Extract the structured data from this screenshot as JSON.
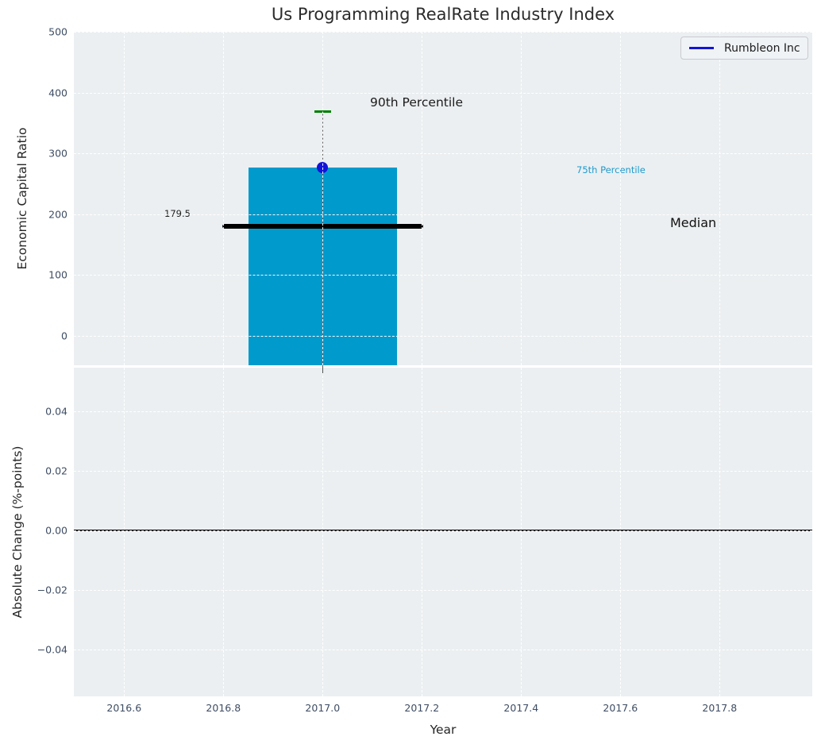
{
  "title": "Us Programming RealRate Industry Index",
  "legend": {
    "label": "Rumbleon Inc"
  },
  "colors": {
    "plot_background": "#eceff1",
    "gridline": "#ffffff",
    "bar": "#009acd",
    "company_point": "#1414d7",
    "percentile90_cap": "#008000",
    "error_line": "#5a5a5a",
    "median_line": "#000000",
    "tick_label": "#3e4d63",
    "annotation_75_color": "#1e9bcd"
  },
  "chart_data": [
    {
      "type": "bar",
      "title": "Us Programming RealRate Industry Index",
      "ylabel": "Economic Capital Ratio",
      "xlabel": "",
      "ylim": [
        -49,
        500
      ],
      "yticks": [
        500,
        400,
        300,
        200,
        100,
        0
      ],
      "ytick_labels": [
        "500",
        "400",
        "300",
        "200",
        "100",
        "0"
      ],
      "grid": true,
      "legend_entries": [
        "Rumbleon Inc"
      ],
      "legend_position": "upper right",
      "values": {
        "company_point": {
          "x": 2017,
          "y": 277
        },
        "bar": {
          "x": 2017,
          "width": 0.3,
          "top": 277
        },
        "percentile_75": 277,
        "percentile_90": 369,
        "median": 179.5,
        "median_line_span": [
          2016.8,
          2017.2
        ]
      },
      "annotations": [
        {
          "text": "90th Percentile",
          "x": 2017.1,
          "y": 358
        },
        {
          "text": "75th Percentile",
          "x": 2017.52,
          "y": 272
        },
        {
          "text": "Median",
          "x": 2017.7,
          "y": 180
        },
        {
          "text": "179.5",
          "x": 2016.69,
          "y": 196
        }
      ]
    },
    {
      "type": "line",
      "title": "",
      "ylabel": "Absolute Change (%-points)",
      "xlabel": "Year",
      "ylim": [
        -0.057,
        0.057
      ],
      "yticks": [
        0.04,
        0.02,
        0,
        -0.02,
        -0.04
      ],
      "ytick_labels": [
        "0.04",
        "0.02",
        "0.00",
        "−0.02",
        "−0.04"
      ],
      "xticks": [
        2016.6,
        2016.8,
        2017.0,
        2017.2,
        2017.4,
        2017.6,
        2017.8
      ],
      "xtick_labels": [
        "2016.6",
        "2016.8",
        "2017.0",
        "2017.2",
        "2017.4",
        "2017.6",
        "2017.8"
      ],
      "zero_line": 0.0,
      "grid": true,
      "series": []
    }
  ]
}
